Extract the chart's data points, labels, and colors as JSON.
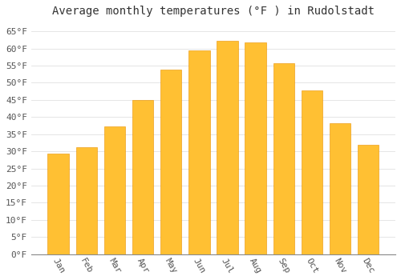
{
  "title": "Average monthly temperatures (°F ) in Rudolstadt",
  "months": [
    "Jan",
    "Feb",
    "Mar",
    "Apr",
    "May",
    "Jun",
    "Jul",
    "Aug",
    "Sep",
    "Oct",
    "Nov",
    "Dec"
  ],
  "values": [
    29.3,
    31.3,
    37.2,
    45.0,
    53.8,
    59.5,
    62.2,
    61.7,
    55.8,
    47.8,
    38.1,
    31.8
  ],
  "bar_color_top": "#FFC033",
  "bar_color_bottom": "#FFA000",
  "bar_edge_color": "#E89000",
  "background_color": "#FFFFFF",
  "grid_color": "#E0E0E0",
  "title_fontsize": 10,
  "tick_fontsize": 8,
  "ylim": [
    0,
    68
  ],
  "yticks": [
    0,
    5,
    10,
    15,
    20,
    25,
    30,
    35,
    40,
    45,
    50,
    55,
    60,
    65
  ],
  "bar_width": 0.75
}
